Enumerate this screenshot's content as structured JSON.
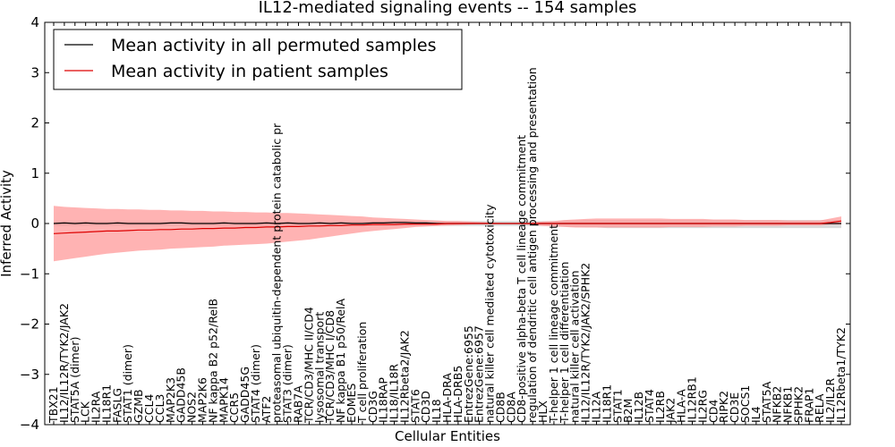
{
  "chart_data": {
    "type": "line",
    "title": "IL12-mediated signaling events -- 154 samples",
    "xlabel": "Cellular Entities",
    "ylabel": "Inferred Activity",
    "ylim": [
      -4,
      4
    ],
    "yticks": [
      -4,
      -3,
      -2,
      -1,
      0,
      1,
      2,
      3,
      4
    ],
    "grid": false,
    "legend_position": "top-left",
    "colors": {
      "permuted_line": "#000000",
      "patient_line": "#dd0000",
      "patient_band": "#ff9999",
      "permuted_band": "#bbbbbb"
    },
    "categories": [
      "TBX21",
      "IL12/IL12R/TYK2/JAK2",
      "STAT5A (dimer)",
      "LCK",
      "IL2RA",
      "IL18R1",
      "FASLG",
      "STAT1 (dimer)",
      "GZMB",
      "CCL4",
      "CCL3",
      "MAP2K3",
      "GADD45B",
      "NOS2",
      "MAP2K6",
      "NF kappa B2 p52/RelB",
      "MAPK14",
      "CCR5",
      "GADD45G",
      "STAT4 (dimer)",
      "ATF2",
      "proteasomal ubiquitin-dependent protein catabolic pr",
      "STAT3 (dimer)",
      "RAB7A",
      "TCR/CD3/MHC II/CD4",
      "lysosomal transport",
      "TCR/CD3/MHC I/CD8",
      "NF kappa B1 p50/RelA",
      "EOMES",
      "T cell proliferation",
      "CD3G",
      "IL18RAP",
      "IL18/IL18R",
      "IL12Rbeta2/JAK2",
      "STAT6",
      "CD3D",
      "IL18",
      "HLA-DRA",
      "HLA-DRB5",
      "EntrezGene:6955",
      "EntrezGene:6957",
      "natural killer cell mediated cytotoxicity",
      "CD8B",
      "CD8A",
      "CD8-positive alpha-beta T cell lineage commitment",
      "regulation of dendritic cell antigen processing and presentation",
      "HLX",
      "T-helper 1 cell lineage commitment",
      "T-helper 1 cell differentiation",
      "natural killer cell activation",
      "IL12/IL12R/TYK2/JAK2/SPHK2",
      "IL12A",
      "IL18R1",
      "STAT1",
      "B2M",
      "IL12B",
      "STAT4",
      "IL2RB",
      "JAK2",
      "HLA-A",
      "IL12RB1",
      "IL2RG",
      "CD4",
      "RIPK2",
      "CD3E",
      "SOCS1",
      "IL4",
      "STAT5A",
      "NFKB2",
      "NFKB1",
      "SPHK2",
      "FRAP1",
      "RELA",
      "IL2/IL2R",
      "IL12Rbeta1/TYK2"
    ],
    "series": [
      {
        "name": "Mean activity in all permuted samples",
        "values": [
          0.0,
          0.01,
          0.0,
          0.01,
          0.0,
          0.0,
          0.01,
          0.0,
          0.0,
          0.0,
          0.0,
          0.01,
          0.01,
          0.0,
          0.0,
          0.0,
          0.01,
          0.0,
          0.0,
          0.0,
          0.01,
          0.0,
          0.01,
          0.0,
          0.0,
          0.01,
          0.0,
          0.01,
          0.0,
          0.0,
          0.01,
          0.01,
          0.02,
          0.02,
          0.01,
          0.01,
          0.0,
          0.0,
          0.0,
          0.0,
          0.0,
          0.0,
          0.0,
          0.0,
          0.0,
          0.0,
          0.0,
          0.0,
          0.0,
          0.0,
          0.0,
          0.0,
          0.0,
          0.0,
          0.0,
          0.0,
          0.0,
          0.0,
          0.0,
          0.0,
          0.0,
          0.0,
          0.0,
          0.0,
          0.0,
          0.0,
          0.0,
          0.0,
          0.0,
          0.0,
          0.0,
          0.0,
          0.0,
          0.0,
          0.0
        ]
      },
      {
        "name": "Mean activity in patient samples",
        "values": [
          -0.2,
          -0.19,
          -0.18,
          -0.17,
          -0.16,
          -0.15,
          -0.15,
          -0.14,
          -0.13,
          -0.13,
          -0.12,
          -0.12,
          -0.11,
          -0.11,
          -0.1,
          -0.1,
          -0.09,
          -0.09,
          -0.08,
          -0.08,
          -0.07,
          -0.07,
          -0.06,
          -0.06,
          -0.05,
          -0.05,
          -0.04,
          -0.04,
          -0.03,
          -0.03,
          -0.02,
          -0.02,
          -0.02,
          -0.01,
          -0.01,
          -0.01,
          -0.01,
          0.0,
          0.0,
          0.0,
          0.0,
          0.0,
          0.0,
          0.0,
          0.0,
          0.0,
          0.0,
          0.0,
          0.0,
          0.0,
          0.0,
          0.0,
          0.0,
          0.0,
          0.0,
          0.0,
          0.0,
          0.0,
          0.0,
          0.0,
          0.0,
          0.0,
          0.0,
          0.0,
          0.0,
          0.0,
          0.0,
          0.0,
          0.0,
          0.0,
          0.0,
          0.0,
          0.0,
          0.02,
          0.05
        ]
      }
    ],
    "patient_band": {
      "upper": [
        0.35,
        0.33,
        0.32,
        0.31,
        0.3,
        0.29,
        0.29,
        0.28,
        0.28,
        0.27,
        0.27,
        0.26,
        0.26,
        0.25,
        0.25,
        0.24,
        0.24,
        0.23,
        0.23,
        0.22,
        0.22,
        0.21,
        0.21,
        0.2,
        0.19,
        0.18,
        0.17,
        0.16,
        0.15,
        0.14,
        0.12,
        0.11,
        0.1,
        0.09,
        0.08,
        0.07,
        0.06,
        0.05,
        0.05,
        0.04,
        0.03,
        0.02,
        0.01,
        0.0,
        0.0,
        0.02,
        0.04,
        0.05,
        0.07,
        0.08,
        0.09,
        0.1,
        0.1,
        0.1,
        0.1,
        0.1,
        0.1,
        0.1,
        0.09,
        0.09,
        0.09,
        0.09,
        0.08,
        0.08,
        0.08,
        0.07,
        0.07,
        0.07,
        0.07,
        0.06,
        0.06,
        0.06,
        0.06,
        0.1,
        0.14
      ],
      "lower": [
        -0.75,
        -0.72,
        -0.69,
        -0.66,
        -0.63,
        -0.6,
        -0.58,
        -0.56,
        -0.54,
        -0.53,
        -0.52,
        -0.5,
        -0.49,
        -0.48,
        -0.47,
        -0.46,
        -0.44,
        -0.43,
        -0.42,
        -0.41,
        -0.4,
        -0.38,
        -0.36,
        -0.34,
        -0.32,
        -0.29,
        -0.26,
        -0.23,
        -0.2,
        -0.17,
        -0.15,
        -0.13,
        -0.11,
        -0.09,
        -0.07,
        -0.06,
        -0.05,
        -0.04,
        -0.03,
        -0.02,
        -0.01,
        -0.01,
        0.0,
        0.0,
        -0.01,
        -0.03,
        -0.05,
        -0.06,
        -0.07,
        -0.08,
        -0.08,
        -0.08,
        -0.08,
        -0.08,
        -0.08,
        -0.08,
        -0.08,
        -0.08,
        -0.07,
        -0.07,
        -0.07,
        -0.07,
        -0.06,
        -0.06,
        -0.06,
        -0.05,
        -0.05,
        -0.05,
        -0.05,
        -0.04,
        -0.04,
        -0.04,
        -0.04,
        -0.02,
        -0.02
      ]
    },
    "permuted_band": {
      "upper": [
        0.05,
        0.05,
        0.05,
        0.05,
        0.05,
        0.05,
        0.05,
        0.05,
        0.05,
        0.05,
        0.05,
        0.05,
        0.05,
        0.05,
        0.05,
        0.05,
        0.05,
        0.05,
        0.05,
        0.05,
        0.05,
        0.05,
        0.05,
        0.05,
        0.05,
        0.05,
        0.05,
        0.05,
        0.05,
        0.05,
        0.05,
        0.05,
        0.05,
        0.05,
        0.05,
        0.05,
        0.05,
        0.05,
        0.05,
        0.05,
        0.05,
        0.05,
        0.05,
        0.05,
        0.05,
        0.05,
        0.05,
        0.05,
        0.06,
        0.06,
        0.07,
        0.07,
        0.07,
        0.07,
        0.07,
        0.07,
        0.07,
        0.07,
        0.07,
        0.07,
        0.07,
        0.07,
        0.07,
        0.07,
        0.07,
        0.07,
        0.07,
        0.07,
        0.07,
        0.07,
        0.07,
        0.07,
        0.07,
        0.07,
        0.07
      ],
      "lower": [
        -0.05,
        -0.05,
        -0.05,
        -0.05,
        -0.05,
        -0.05,
        -0.05,
        -0.05,
        -0.05,
        -0.05,
        -0.05,
        -0.05,
        -0.05,
        -0.05,
        -0.05,
        -0.05,
        -0.05,
        -0.05,
        -0.05,
        -0.05,
        -0.05,
        -0.05,
        -0.05,
        -0.05,
        -0.05,
        -0.05,
        -0.05,
        -0.05,
        -0.05,
        -0.05,
        -0.05,
        -0.05,
        -0.05,
        -0.05,
        -0.05,
        -0.05,
        -0.05,
        -0.05,
        -0.05,
        -0.05,
        -0.05,
        -0.05,
        -0.05,
        -0.05,
        -0.05,
        -0.05,
        -0.05,
        -0.05,
        -0.06,
        -0.07,
        -0.08,
        -0.08,
        -0.09,
        -0.09,
        -0.09,
        -0.09,
        -0.09,
        -0.09,
        -0.09,
        -0.09,
        -0.09,
        -0.09,
        -0.09,
        -0.09,
        -0.09,
        -0.09,
        -0.09,
        -0.09,
        -0.09,
        -0.09,
        -0.09,
        -0.09,
        -0.09,
        -0.09,
        -0.09
      ]
    }
  }
}
